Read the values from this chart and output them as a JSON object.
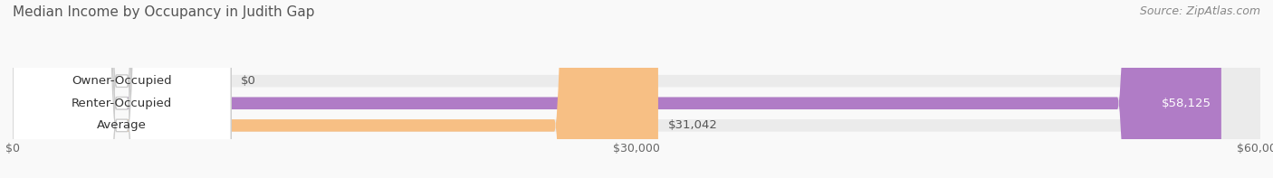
{
  "title": "Median Income by Occupancy in Judith Gap",
  "source": "Source: ZipAtlas.com",
  "categories": [
    "Owner-Occupied",
    "Renter-Occupied",
    "Average"
  ],
  "values": [
    0,
    58125,
    31042
  ],
  "bar_colors": [
    "#5dcfcf",
    "#b07cc6",
    "#f7bf84"
  ],
  "track_color": "#ebebeb",
  "label_bg_color": "#ffffff",
  "xlim": [
    0,
    60000
  ],
  "xticks": [
    0,
    30000,
    60000
  ],
  "xtick_labels": [
    "$0",
    "$30,000",
    "$60,000"
  ],
  "value_labels": [
    "$0",
    "$58,125",
    "$31,042"
  ],
  "bar_height": 0.55,
  "title_fontsize": 11,
  "source_fontsize": 9,
  "label_fontsize": 9.5,
  "value_fontsize": 9.5,
  "background_color": "#f9f9f9"
}
